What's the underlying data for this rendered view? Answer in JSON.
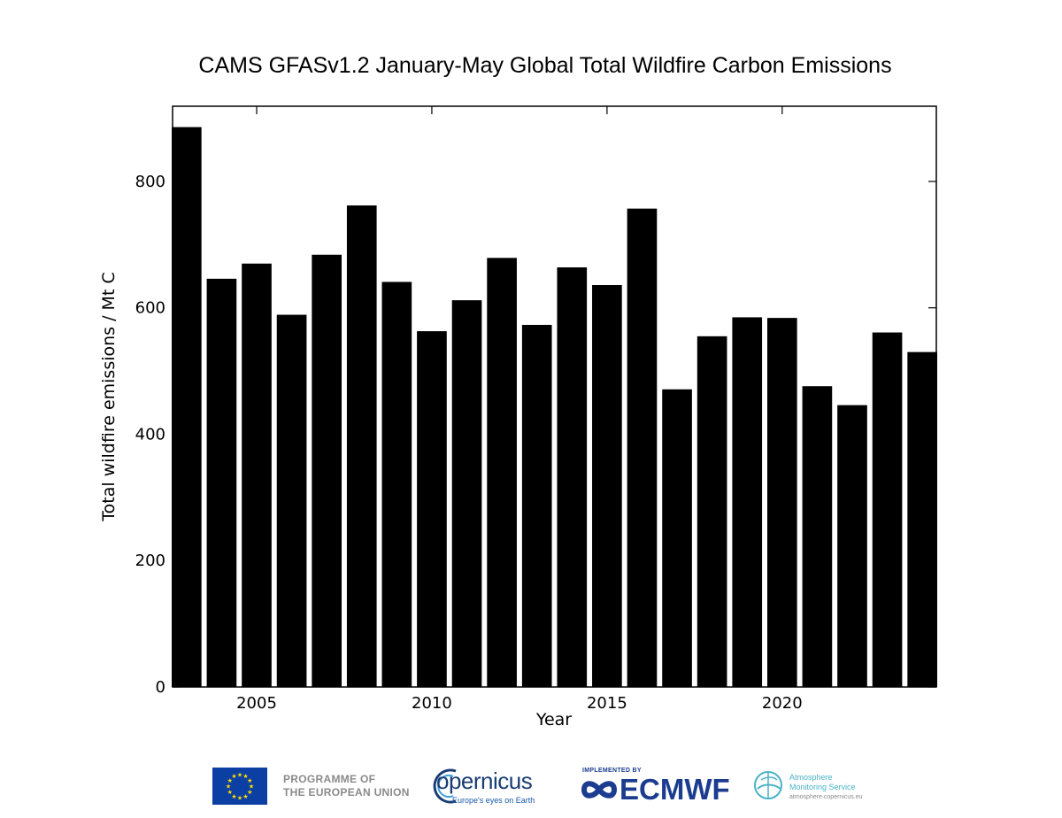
{
  "chart_data": {
    "type": "bar",
    "title": "CAMS GFASv1.2 January-May Global Total Wildfire Carbon Emissions",
    "xlabel": "Year",
    "ylabel": "Total wildfire emissions / Mt C",
    "x": [
      2003,
      2004,
      2005,
      2006,
      2007,
      2008,
      2009,
      2010,
      2011,
      2012,
      2013,
      2014,
      2015,
      2016,
      2017,
      2018,
      2019,
      2020,
      2021,
      2022,
      2023,
      2024
    ],
    "values": [
      886,
      646,
      670,
      589,
      684,
      762,
      641,
      563,
      612,
      679,
      573,
      664,
      636,
      757,
      471,
      555,
      585,
      584,
      476,
      446,
      561,
      530
    ],
    "xlim": [
      2002.6,
      2024.4
    ],
    "ylim": [
      0,
      919
    ],
    "xticks": [
      2005,
      2010,
      2015,
      2020
    ],
    "yticks": [
      0,
      200,
      400,
      600,
      800
    ],
    "bar_color": "#000000",
    "grid": false,
    "legend": "none"
  },
  "footer": {
    "eu_line1": "PROGRAMME OF",
    "eu_line2": "THE EUROPEAN UNION",
    "copernicus_word": "opernicus",
    "copernicus_tagline": "Europe's eyes on Earth",
    "ecmwf_implemented": "IMPLEMENTED BY",
    "ecmwf_word": "ECMWF",
    "cams_line1": "Atmosphere",
    "cams_line2": "Monitoring Service",
    "cams_url": "atmosphere.copernicus.eu",
    "colors": {
      "eu_blue": "#0b3fa3",
      "eu_star": "#ffdd00",
      "ecmwf_blue": "#1b3c8f",
      "cams_teal": "#4ab2c7",
      "copernicus_blue": "#1a3d73"
    }
  }
}
